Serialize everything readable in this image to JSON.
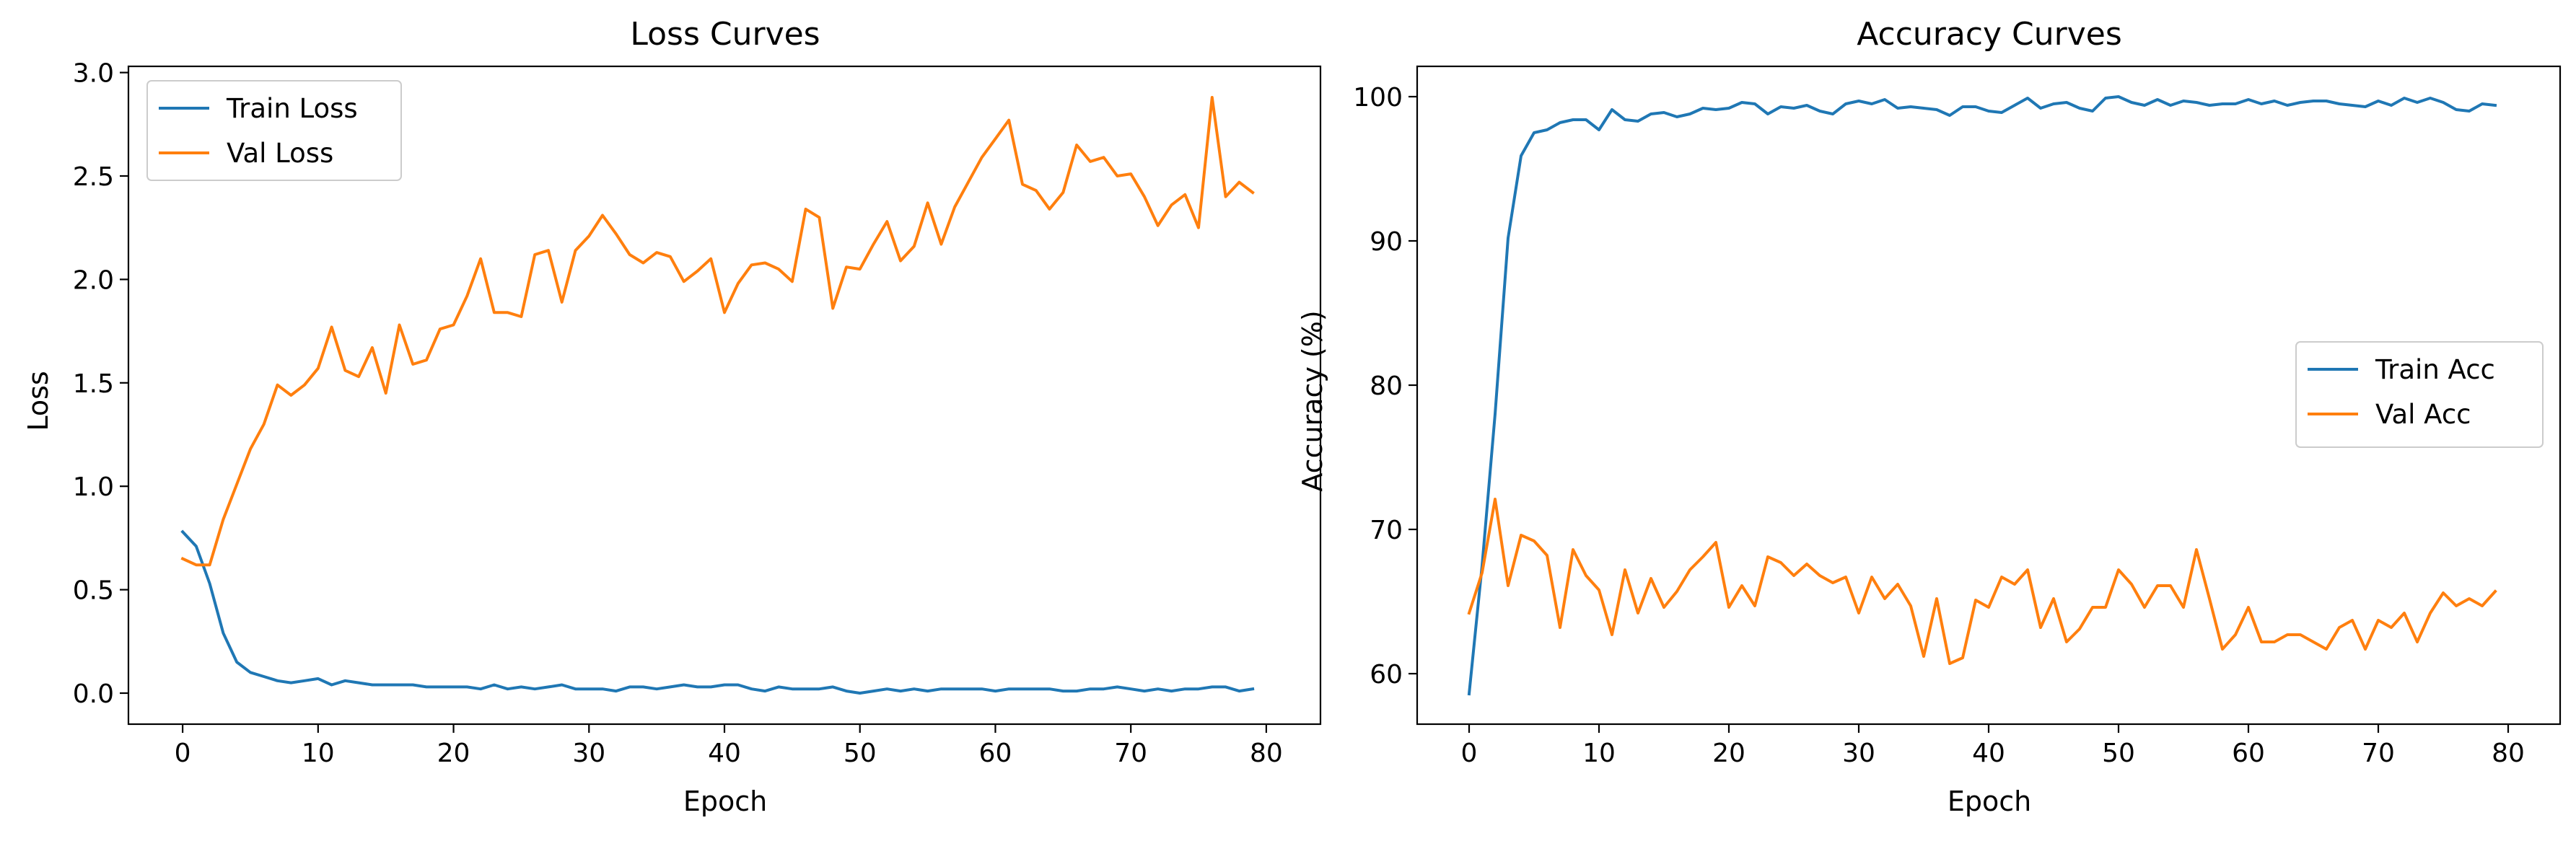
{
  "chart_data": [
    {
      "type": "line",
      "title": "Loss Curves",
      "xlabel": "Epoch",
      "ylabel": "Loss",
      "xlim": [
        -4,
        84
      ],
      "ylim": [
        -0.15,
        3.03
      ],
      "xticks": [
        0,
        10,
        20,
        30,
        40,
        50,
        60,
        70,
        80
      ],
      "yticks": [
        0.0,
        0.5,
        1.0,
        1.5,
        2.0,
        2.5,
        3.0
      ],
      "ytick_labels": [
        "0.0",
        "0.5",
        "1.0",
        "1.5",
        "2.0",
        "2.5",
        "3.0"
      ],
      "grid": false,
      "legend_position": "upper-left",
      "series": [
        {
          "name": "Train Loss",
          "color": "#1f77b4",
          "values": [
            0.78,
            0.71,
            0.53,
            0.29,
            0.15,
            0.1,
            0.08,
            0.06,
            0.05,
            0.06,
            0.07,
            0.04,
            0.06,
            0.05,
            0.04,
            0.04,
            0.04,
            0.04,
            0.03,
            0.03,
            0.03,
            0.03,
            0.02,
            0.04,
            0.02,
            0.03,
            0.02,
            0.03,
            0.04,
            0.02,
            0.02,
            0.02,
            0.01,
            0.03,
            0.03,
            0.02,
            0.03,
            0.04,
            0.03,
            0.03,
            0.04,
            0.04,
            0.02,
            0.01,
            0.03,
            0.02,
            0.02,
            0.02,
            0.03,
            0.01,
            0.0,
            0.01,
            0.02,
            0.01,
            0.02,
            0.01,
            0.02,
            0.02,
            0.02,
            0.02,
            0.01,
            0.02,
            0.02,
            0.02,
            0.02,
            0.01,
            0.01,
            0.02,
            0.02,
            0.03,
            0.02,
            0.01,
            0.02,
            0.01,
            0.02,
            0.02,
            0.03,
            0.03,
            0.01,
            0.02
          ]
        },
        {
          "name": "Val Loss",
          "color": "#ff7f0e",
          "values": [
            0.65,
            0.62,
            0.62,
            0.84,
            1.01,
            1.18,
            1.3,
            1.49,
            1.44,
            1.49,
            1.57,
            1.77,
            1.56,
            1.53,
            1.67,
            1.45,
            1.78,
            1.59,
            1.61,
            1.76,
            1.78,
            1.92,
            2.1,
            1.84,
            1.84,
            1.82,
            2.12,
            2.14,
            1.89,
            2.14,
            2.21,
            2.31,
            2.22,
            2.12,
            2.08,
            2.13,
            2.11,
            1.99,
            2.04,
            2.1,
            1.84,
            1.98,
            2.07,
            2.08,
            2.05,
            1.99,
            2.34,
            2.3,
            1.86,
            2.06,
            2.05,
            2.17,
            2.28,
            2.09,
            2.16,
            2.37,
            2.17,
            2.35,
            2.47,
            2.59,
            2.68,
            2.77,
            2.46,
            2.43,
            2.34,
            2.42,
            2.65,
            2.57,
            2.59,
            2.5,
            2.51,
            2.4,
            2.26,
            2.36,
            2.41,
            2.25,
            2.88,
            2.4,
            2.47,
            2.42
          ]
        }
      ]
    },
    {
      "type": "line",
      "title": "Accuracy Curves",
      "xlabel": "Epoch",
      "ylabel": "Accuracy (%)",
      "xlim": [
        -4,
        84
      ],
      "ylim": [
        56.5,
        102.1
      ],
      "xticks": [
        0,
        10,
        20,
        30,
        40,
        50,
        60,
        70,
        80
      ],
      "yticks": [
        60,
        70,
        80,
        90,
        100
      ],
      "ytick_labels": [
        "60",
        "70",
        "80",
        "90",
        "100"
      ],
      "grid": false,
      "legend_position": "center-right",
      "series": [
        {
          "name": "Train Acc",
          "color": "#1f77b4",
          "values": [
            58.6,
            67.5,
            78.0,
            90.2,
            95.9,
            97.5,
            97.7,
            98.2,
            98.4,
            98.4,
            97.7,
            99.1,
            98.4,
            98.3,
            98.8,
            98.9,
            98.6,
            98.8,
            99.2,
            99.1,
            99.2,
            99.6,
            99.5,
            98.8,
            99.3,
            99.2,
            99.4,
            99.0,
            98.8,
            99.5,
            99.7,
            99.5,
            99.8,
            99.2,
            99.3,
            99.2,
            99.1,
            98.7,
            99.3,
            99.3,
            99.0,
            98.9,
            99.4,
            99.9,
            99.2,
            99.5,
            99.6,
            99.2,
            99.0,
            99.9,
            100.0,
            99.6,
            99.4,
            99.8,
            99.4,
            99.7,
            99.6,
            99.4,
            99.5,
            99.5,
            99.8,
            99.5,
            99.7,
            99.4,
            99.6,
            99.7,
            99.7,
            99.5,
            99.4,
            99.3,
            99.7,
            99.4,
            99.9,
            99.6,
            99.9,
            99.6,
            99.1,
            99.0,
            99.5,
            99.4
          ]
        },
        {
          "name": "Val Acc",
          "color": "#ff7f0e",
          "values": [
            64.2,
            67.0,
            72.1,
            66.1,
            69.6,
            69.2,
            68.2,
            63.2,
            68.6,
            66.8,
            65.8,
            62.7,
            67.2,
            64.2,
            66.6,
            64.6,
            65.7,
            67.2,
            68.1,
            69.1,
            64.6,
            66.1,
            64.7,
            68.1,
            67.7,
            66.8,
            67.6,
            66.8,
            66.3,
            66.7,
            64.2,
            66.7,
            65.2,
            66.2,
            64.7,
            61.2,
            65.2,
            60.7,
            61.1,
            65.1,
            64.6,
            66.7,
            66.2,
            67.2,
            63.2,
            65.2,
            62.2,
            63.1,
            64.6,
            64.6,
            67.2,
            66.2,
            64.6,
            66.1,
            66.1,
            64.6,
            68.6,
            65.2,
            61.7,
            62.7,
            64.6,
            62.2,
            62.2,
            62.7,
            62.7,
            62.2,
            61.7,
            63.2,
            63.7,
            61.7,
            63.7,
            63.2,
            64.2,
            62.2,
            64.2,
            65.6,
            64.7,
            65.2,
            64.7,
            65.7
          ]
        }
      ]
    }
  ]
}
